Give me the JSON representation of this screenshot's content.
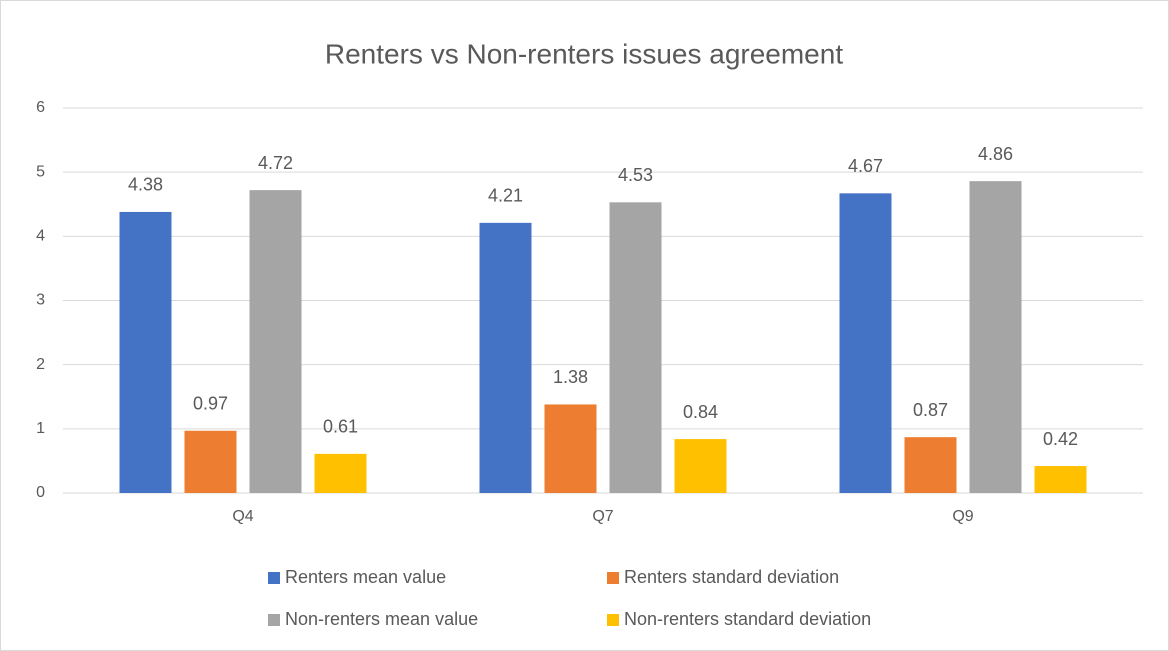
{
  "chart_data": {
    "type": "bar",
    "title": "Renters vs Non-renters issues agreement",
    "categories": [
      "Q4",
      "Q7",
      "Q9"
    ],
    "series": [
      {
        "name": "Renters mean value",
        "color": "#4472c4",
        "values": [
          4.38,
          4.21,
          4.67
        ]
      },
      {
        "name": "Renters standard deviation",
        "color": "#ed7d31",
        "values": [
          0.97,
          1.38,
          0.87
        ]
      },
      {
        "name": "Non-renters mean value",
        "color": "#a5a5a5",
        "values": [
          4.72,
          4.53,
          4.86
        ]
      },
      {
        "name": "Non-renters standard deviation",
        "color": "#ffc000",
        "values": [
          0.61,
          0.84,
          0.42
        ]
      }
    ],
    "ylim": [
      0,
      6
    ],
    "yticks": [
      0,
      1,
      2,
      3,
      4,
      5,
      6
    ],
    "grid": true,
    "data_labels": true,
    "legend": "bottom"
  }
}
